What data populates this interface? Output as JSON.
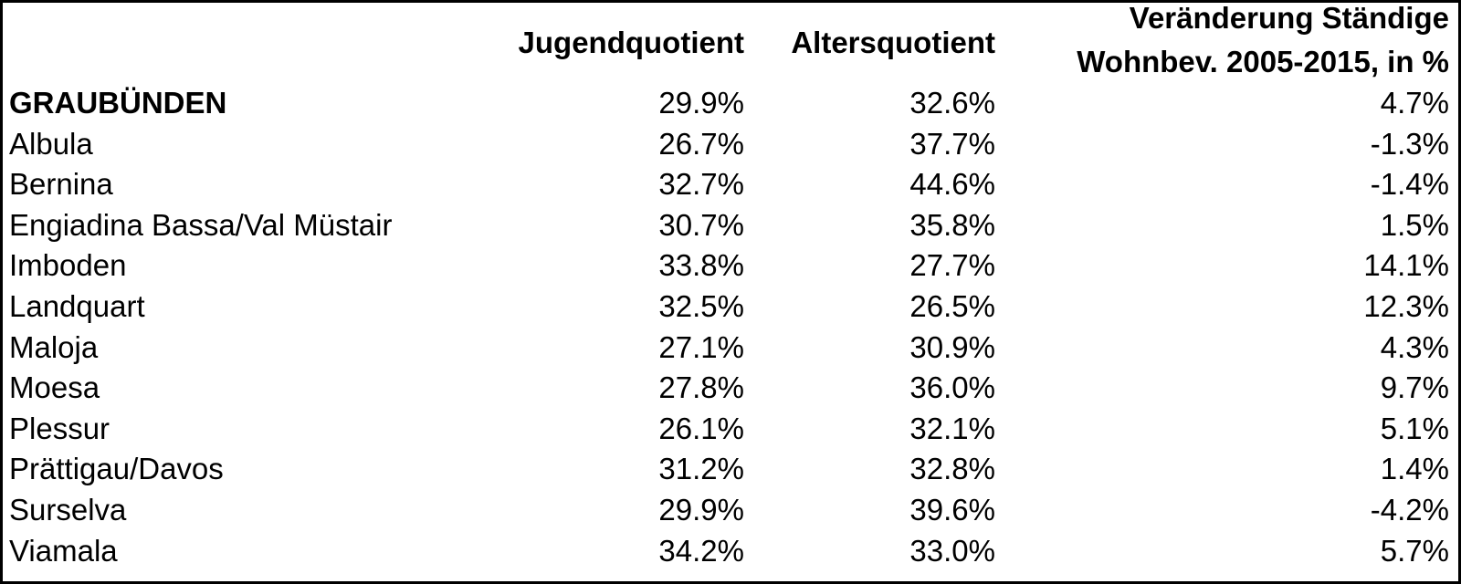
{
  "table": {
    "header": [
      "Jugendquotient",
      "Altersquotient",
      [
        "Veränderung Ständige",
        "Wohnbev. 2005-2015, in %"
      ]
    ],
    "rows": [
      [
        "GRAUBÜNDEN",
        "29.9%",
        "32.6%",
        "4.7%"
      ],
      [
        "Albula",
        "26.7%",
        "37.7%",
        "-1.3%"
      ],
      [
        "Bernina",
        "32.7%",
        "44.6%",
        "-1.4%"
      ],
      [
        "Engiadina Bassa/Val Müstair",
        "30.7%",
        "35.8%",
        "1.5%"
      ],
      [
        "Imboden",
        "33.8%",
        "27.7%",
        "14.1%"
      ],
      [
        "Landquart",
        "32.5%",
        "26.5%",
        "12.3%"
      ],
      [
        "Maloja",
        "27.1%",
        "30.9%",
        "4.3%"
      ],
      [
        "Moesa",
        "27.8%",
        "36.0%",
        "9.7%"
      ],
      [
        "Plessur",
        "26.1%",
        "32.1%",
        "5.1%"
      ],
      [
        "Prättigau/Davos",
        "31.2%",
        "32.8%",
        "1.4%"
      ],
      [
        "Surselva",
        "29.9%",
        "39.6%",
        "-4.2%"
      ],
      [
        "Viamala",
        "34.2%",
        "33.0%",
        "5.7%"
      ]
    ]
  }
}
